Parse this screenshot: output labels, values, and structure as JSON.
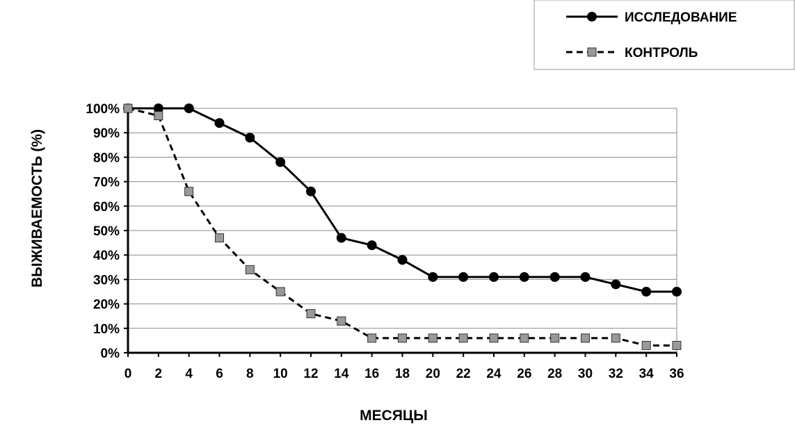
{
  "chart_data": {
    "type": "line",
    "xlabel": "МЕСЯЦЫ",
    "ylabel": "ВЫЖИВАЕМОСТЬ  (%)",
    "x": [
      0,
      2,
      4,
      6,
      8,
      10,
      12,
      14,
      16,
      18,
      20,
      22,
      24,
      26,
      28,
      30,
      32,
      34,
      36
    ],
    "xlim": [
      0,
      36
    ],
    "ylim": [
      0,
      100
    ],
    "x_ticks": [
      "0",
      "2",
      "4",
      "6",
      "8",
      "10",
      "12",
      "14",
      "16",
      "18",
      "20",
      "22",
      "24",
      "26",
      "28",
      "30",
      "32",
      "34",
      "36"
    ],
    "y_ticks": [
      "0%",
      "10%",
      "20%",
      "30%",
      "40%",
      "50%",
      "60%",
      "70%",
      "80%",
      "90%",
      "100%"
    ],
    "grid": "horizontal",
    "legend_position": "top-right",
    "series": [
      {
        "name": "ИССЛЕДОВАНИЕ",
        "style": "solid",
        "marker": "circle",
        "color": "#000000",
        "values": [
          100,
          100,
          100,
          94,
          88,
          78,
          66,
          47,
          44,
          38,
          31,
          31,
          31,
          31,
          31,
          31,
          28,
          25,
          25
        ]
      },
      {
        "name": "КОНТРОЛЬ",
        "style": "dashed",
        "marker": "square",
        "color": "#000000",
        "marker_fill": "#999999",
        "values": [
          100,
          97,
          66,
          47,
          34,
          25,
          16,
          13,
          6,
          6,
          6,
          6,
          6,
          6,
          6,
          6,
          6,
          3,
          3
        ]
      }
    ]
  }
}
